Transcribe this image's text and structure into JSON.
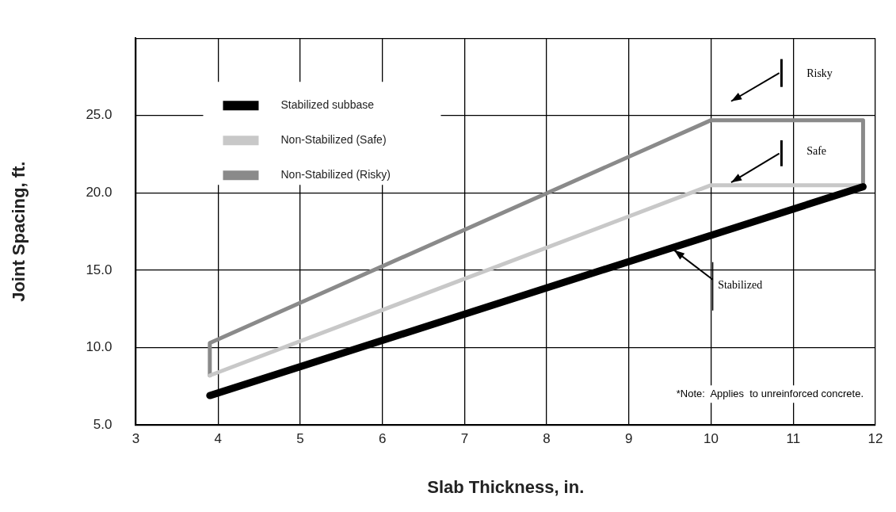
{
  "chart_data": {
    "type": "line",
    "xlabel": "Slab Thickness, in.",
    "ylabel": "Joint Spacing, ft.",
    "series": [
      {
        "name": "Stabilized subbase",
        "color": "#000000",
        "x": [
          3.9,
          11.85
        ],
        "values": [
          6.9,
          20.4
        ]
      },
      {
        "name": "Non-Stabilized (Safe)",
        "color": "#c8c8c8",
        "x": [
          3.9,
          10,
          11.85
        ],
        "values": [
          8.2,
          20.5,
          20.5
        ]
      },
      {
        "name": "Non-Stabilized (Risky)",
        "color": "#8a8a8a",
        "x": [
          3.9,
          3.9,
          10,
          11.85,
          11.85
        ],
        "values": [
          8.2,
          10.3,
          24.7,
          24.7,
          20.5
        ]
      }
    ],
    "xlim": [
      3,
      12
    ],
    "xticks": [
      3,
      4,
      5,
      6,
      7,
      8,
      9,
      10,
      11,
      12
    ],
    "ylim": [
      5,
      30
    ],
    "yticks": [
      {
        "value": 5,
        "label": "5.0"
      },
      {
        "value": 10,
        "label": "10.0"
      },
      {
        "value": 15,
        "label": "15.0"
      },
      {
        "value": 20,
        "label": "20.0"
      },
      {
        "value": 25,
        "label": "25.0"
      },
      {
        "value": 30,
        "label": null
      }
    ],
    "grid": true,
    "legend": "top left",
    "marker": "none",
    "line_style": "solid",
    "annotations": [
      "Risky",
      "Safe",
      {
        "text": "Stabilized",
        "x": 9.55,
        "y": 16.3
      },
      "*Note:  Applies  to unreinforced concrete."
    ]
  }
}
